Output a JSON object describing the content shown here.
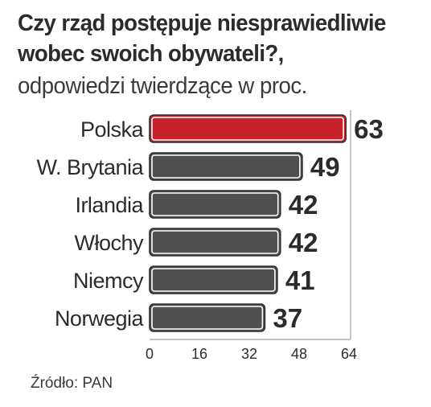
{
  "header": {
    "title_line1": "Czy rząd postępuje niesprawiedliwie",
    "title_line2": "wobec swoich obywateli?,",
    "subtitle": "odpowiedzi twierdzące w proc."
  },
  "footer": {
    "source": "Źródło: PAN"
  },
  "colors": {
    "highlight": "#c8202a",
    "bar": "#4f4f4f",
    "axis": "#b0b0b0",
    "text": "#2b2b2b"
  },
  "chart_data": {
    "type": "bar",
    "orientation": "horizontal",
    "categories": [
      "Polska",
      "W. Brytania",
      "Irlandia",
      "Włochy",
      "Niemcy",
      "Norwegia"
    ],
    "values": [
      63,
      49,
      42,
      42,
      41,
      37
    ],
    "highlighted_category": "Polska",
    "xlim": [
      0,
      64
    ],
    "xticks": [
      0,
      16,
      32,
      48,
      64
    ],
    "grid": false
  }
}
